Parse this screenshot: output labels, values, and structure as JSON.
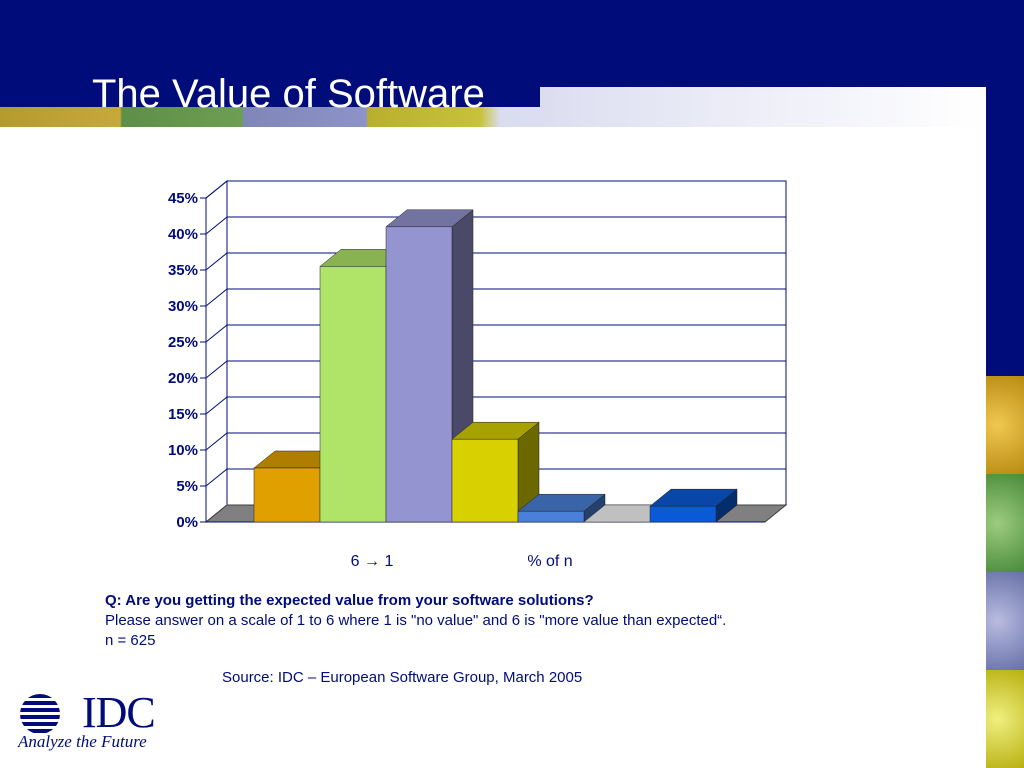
{
  "slide": {
    "title": "The Value of Software"
  },
  "colors": {
    "banner": "#000c7a",
    "text": "#000c7a"
  },
  "chart_data": {
    "type": "bar",
    "x_labels": [
      "6 → 1",
      "% of n"
    ],
    "y_tick_labels": [
      "0%",
      "5%",
      "10%",
      "15%",
      "20%",
      "25%",
      "30%",
      "35%",
      "40%",
      "45%"
    ],
    "ylim": [
      0,
      45
    ],
    "grid": true,
    "series": [
      {
        "values": [
          7.5,
          35.5,
          41,
          11.5,
          1.5,
          0,
          2.2
        ],
        "colors": [
          "#e0a000",
          "#b0e468",
          "#9494d0",
          "#d8d000",
          "#4a80d8",
          "#c0c0c0",
          "#0a5ad8"
        ]
      }
    ]
  },
  "notes": {
    "question": "Q: Are you getting the expected value from your software solutions?",
    "instruction": "Please answer on a scale of 1 to 6 where 1 is \"no value\" and 6 is \"more value than expected“.",
    "n": "n = 625",
    "source": "Source: IDC – European Software Group, March 2005"
  },
  "logo": {
    "name": "IDC",
    "tagline": "Analyze the Future"
  }
}
